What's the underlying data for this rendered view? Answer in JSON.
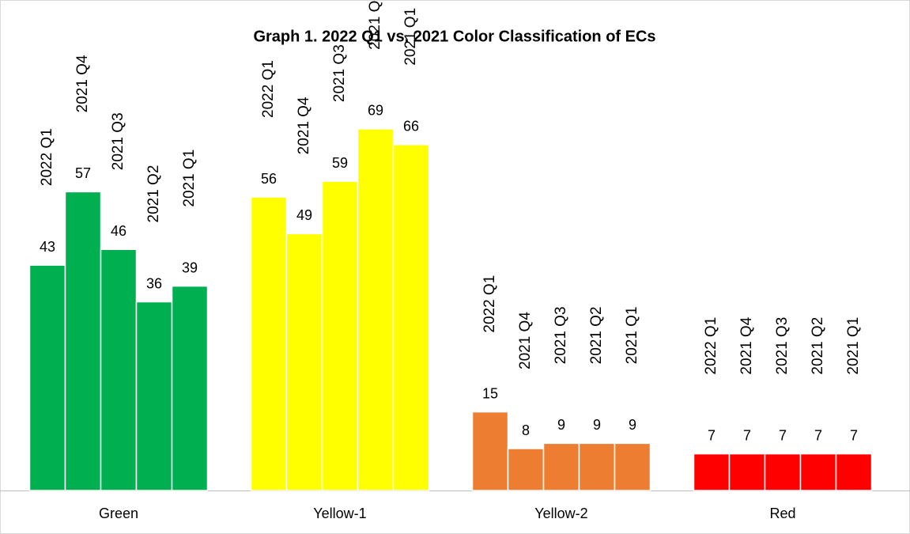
{
  "chart_data": {
    "type": "bar",
    "title": "Graph 1. 2022 Q1 vs. 2021 Color Classification of ECs",
    "categories": [
      "Green",
      "Yellow-1",
      "Yellow-2",
      "Red"
    ],
    "colors": [
      "#00b050",
      "#ffff00",
      "#ed7d31",
      "#ff0000"
    ],
    "series": [
      {
        "name": "2022 Q1",
        "values": [
          43,
          56,
          15,
          7
        ]
      },
      {
        "name": "2021 Q4",
        "values": [
          57,
          49,
          8,
          7
        ]
      },
      {
        "name": "2021 Q3",
        "values": [
          46,
          59,
          9,
          7
        ]
      },
      {
        "name": "2021 Q2",
        "values": [
          36,
          69,
          9,
          7
        ]
      },
      {
        "name": "2021 Q1",
        "values": [
          39,
          66,
          9,
          7
        ]
      }
    ],
    "ylim": [
      0,
      80
    ]
  }
}
